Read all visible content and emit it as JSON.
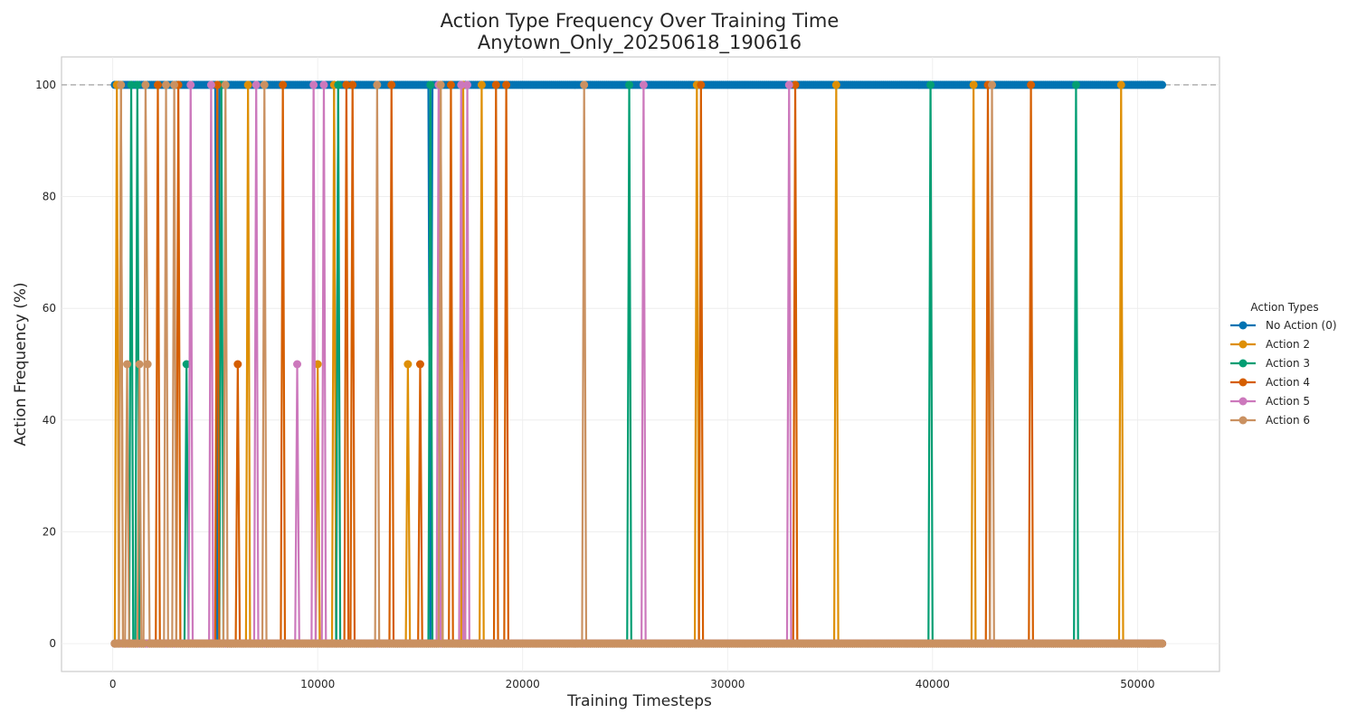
{
  "chart_data": {
    "type": "line",
    "title": "Action Type Frequency Over Training Time",
    "subtitle": "Anytown_Only_20250618_190616",
    "xlabel": "Training Timesteps",
    "ylabel": "Action Frequency (%)",
    "xlim": [
      -2500,
      54000
    ],
    "ylim": [
      -5,
      105
    ],
    "xticks": [
      0,
      10000,
      20000,
      30000,
      40000,
      50000
    ],
    "xtick_labels": [
      "0",
      "10000",
      "20000",
      "30000",
      "40000",
      "50000"
    ],
    "yticks": [
      0,
      20,
      40,
      60,
      80,
      100
    ],
    "ytick_labels": [
      "0",
      "20",
      "40",
      "60",
      "80",
      "100"
    ],
    "grid": true,
    "reference_line_y": 100,
    "legend": {
      "title": "Action Types",
      "placement": "outside-right"
    },
    "x_start": 100,
    "x_end": 51200,
    "x_step": 100,
    "series": [
      {
        "name": "No Action (0)",
        "color": "#0173b2",
        "default": 100,
        "overrides": [
          [
            100,
            100
          ],
          [
            5100,
            0
          ],
          [
            10900,
            0
          ],
          [
            15500,
            0
          ]
        ]
      },
      {
        "name": "Action 2",
        "color": "#de8f05",
        "default": 0,
        "overrides": [
          [
            200,
            100
          ],
          [
            400,
            100
          ],
          [
            6600,
            100
          ],
          [
            10000,
            50
          ],
          [
            10800,
            100
          ],
          [
            14400,
            50
          ],
          [
            16000,
            100
          ],
          [
            17100,
            100
          ],
          [
            18000,
            100
          ],
          [
            28500,
            100
          ],
          [
            35300,
            100
          ],
          [
            42000,
            100
          ],
          [
            49200,
            100
          ]
        ]
      },
      {
        "name": "Action 3",
        "color": "#029e73",
        "default": 0,
        "overrides": [
          [
            900,
            100
          ],
          [
            1200,
            100
          ],
          [
            3600,
            50
          ],
          [
            5300,
            100
          ],
          [
            11000,
            100
          ],
          [
            15500,
            100
          ],
          [
            25200,
            100
          ],
          [
            39900,
            100
          ],
          [
            47000,
            100
          ]
        ]
      },
      {
        "name": "Action 4",
        "color": "#d55e00",
        "default": 0,
        "overrides": [
          [
            2200,
            100
          ],
          [
            3200,
            100
          ],
          [
            5100,
            100
          ],
          [
            6100,
            50
          ],
          [
            8300,
            100
          ],
          [
            11400,
            100
          ],
          [
            11700,
            100
          ],
          [
            13600,
            100
          ],
          [
            15000,
            50
          ],
          [
            16500,
            100
          ],
          [
            18700,
            100
          ],
          [
            19200,
            100
          ],
          [
            28700,
            100
          ],
          [
            33300,
            100
          ],
          [
            42700,
            100
          ],
          [
            44800,
            100
          ]
        ]
      },
      {
        "name": "Action 5",
        "color": "#cc78bc",
        "default": 0,
        "overrides": [
          [
            3800,
            100
          ],
          [
            4800,
            100
          ],
          [
            7000,
            100
          ],
          [
            9000,
            50
          ],
          [
            9800,
            100
          ],
          [
            10300,
            100
          ],
          [
            15900,
            100
          ],
          [
            17000,
            100
          ],
          [
            17300,
            100
          ],
          [
            25900,
            100
          ],
          [
            33000,
            100
          ]
        ]
      },
      {
        "name": "Action 6",
        "color": "#ca9161",
        "default": 0,
        "overrides": [
          [
            400,
            100
          ],
          [
            700,
            50
          ],
          [
            1300,
            50
          ],
          [
            1600,
            100
          ],
          [
            1700,
            50
          ],
          [
            2600,
            100
          ],
          [
            3000,
            100
          ],
          [
            5500,
            100
          ],
          [
            7400,
            100
          ],
          [
            12900,
            100
          ],
          [
            16000,
            100
          ],
          [
            23000,
            100
          ],
          [
            42900,
            100
          ]
        ]
      }
    ]
  }
}
